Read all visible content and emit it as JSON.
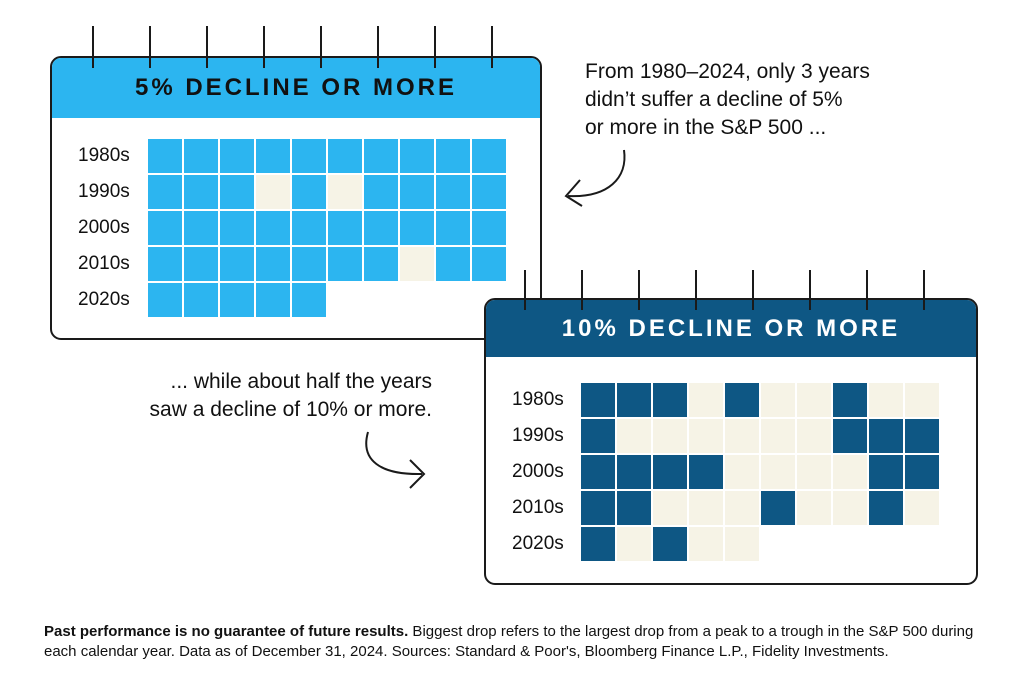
{
  "colors": {
    "light_blue": "#2cb5f0",
    "dark_blue": "#0e5784",
    "empty_cell": "#f6f3e6",
    "outline": "#1a1a1a"
  },
  "chart_data": [
    {
      "type": "heatmap",
      "title": "5% DECLINE OR MORE",
      "rows": [
        "1980s",
        "1990s",
        "2000s",
        "2010s",
        "2020s"
      ],
      "columns_per_row": 10,
      "values": [
        [
          1,
          1,
          1,
          1,
          1,
          1,
          1,
          1,
          1,
          1
        ],
        [
          1,
          1,
          1,
          0,
          1,
          0,
          1,
          1,
          1,
          1
        ],
        [
          1,
          1,
          1,
          1,
          1,
          1,
          1,
          1,
          1,
          1
        ],
        [
          1,
          1,
          1,
          1,
          1,
          1,
          1,
          0,
          1,
          1
        ],
        [
          1,
          1,
          1,
          1,
          1
        ]
      ],
      "legend": "1 = year with a decline of 5% or more; 0 = no such decline"
    },
    {
      "type": "heatmap",
      "title": "10% DECLINE OR MORE",
      "rows": [
        "1980s",
        "1990s",
        "2000s",
        "2010s",
        "2020s"
      ],
      "columns_per_row": 10,
      "values": [
        [
          1,
          1,
          1,
          0,
          1,
          0,
          0,
          1,
          0,
          0
        ],
        [
          1,
          0,
          0,
          0,
          0,
          0,
          0,
          1,
          1,
          1
        ],
        [
          1,
          1,
          1,
          1,
          0,
          0,
          0,
          0,
          1,
          1
        ],
        [
          1,
          1,
          0,
          0,
          0,
          1,
          0,
          0,
          1,
          0
        ],
        [
          1,
          0,
          1,
          0,
          0
        ]
      ],
      "legend": "1 = year with a decline of 10% or more; 0 = no such decline"
    }
  ],
  "annotations": {
    "top_right": [
      "From 1980–2024, only 3 years",
      "didn’t suffer a decline of 5%",
      "or more in the S&P 500 ..."
    ],
    "middle_left": [
      "... while about half the years",
      "saw a decline of 10% or more."
    ]
  },
  "footer": {
    "bold": "Past performance is no guarantee of future results.",
    "text": " Biggest drop refers to the largest drop from a peak to a trough in the S&P 500 during each calendar year. Data as of December 31, 2024. Sources: Standard & Poor's, Bloomberg Finance L.P., Fidelity Investments."
  }
}
